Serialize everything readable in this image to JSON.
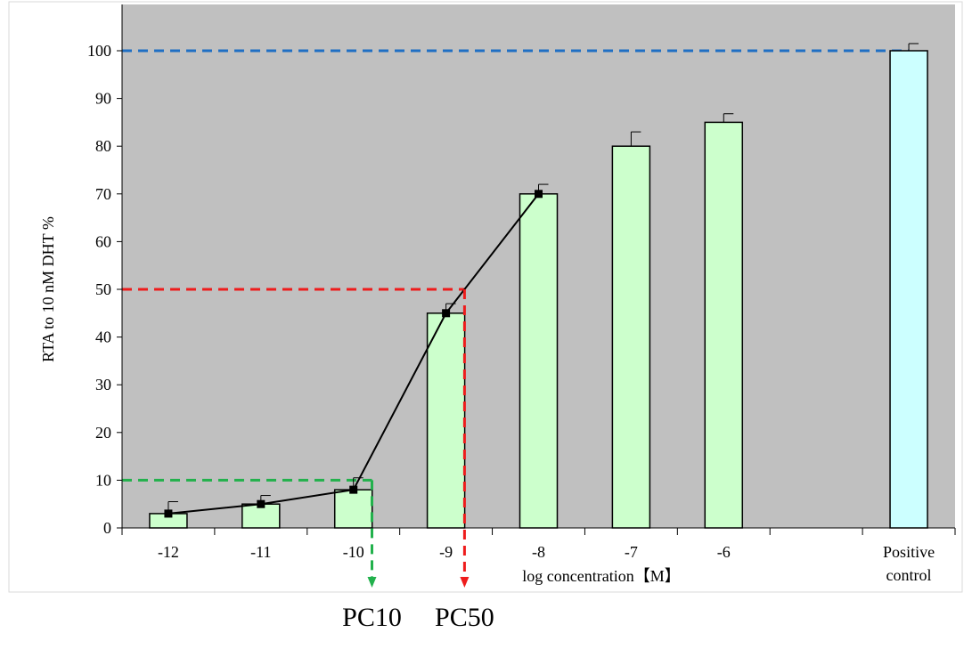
{
  "chart_data": {
    "type": "bar",
    "categories": [
      "-12",
      "-11",
      "-10",
      "-9",
      "-8",
      "-7",
      "-6",
      "",
      "Positive control"
    ],
    "category_labels": [
      [
        "-12"
      ],
      [
        "-11"
      ],
      [
        "-10"
      ],
      [
        "-9"
      ],
      [
        "-8"
      ],
      [
        "-7"
      ],
      [
        "-6"
      ],
      [
        ""
      ],
      [
        "Positive",
        "control"
      ]
    ],
    "bars": [
      {
        "category": "-12",
        "value": 3,
        "error": 2.5
      },
      {
        "category": "-11",
        "value": 5,
        "error": 1.8
      },
      {
        "category": "-10",
        "value": 8,
        "error": 2.5
      },
      {
        "category": "-9",
        "value": 45,
        "error": 2
      },
      {
        "category": "-8",
        "value": 70,
        "error": 2
      },
      {
        "category": "-7",
        "value": 80,
        "error": 3
      },
      {
        "category": "-6",
        "value": 85,
        "error": 1.8
      },
      {
        "category": "Positive control",
        "value": 100,
        "error": 1.5
      }
    ],
    "line": {
      "categories": [
        "-12",
        "-11",
        "-10",
        "-9",
        "-8"
      ],
      "values": [
        3,
        5,
        8,
        45,
        70
      ]
    },
    "reference_lines": [
      {
        "label": "",
        "y": 100,
        "color": "#1f6fc4"
      },
      {
        "label": "PC50",
        "y": 50,
        "x": -8.8,
        "color": "#ee1c1c"
      },
      {
        "label": "PC10",
        "y": 10,
        "x": -9.8,
        "color": "#22b14c"
      }
    ],
    "xlabel": "log concentration【M】",
    "ylabel": "RTA to 10 nM DHT %",
    "yticks": [
      0,
      10,
      20,
      30,
      40,
      50,
      60,
      70,
      80,
      90,
      100
    ],
    "ylim": [
      0,
      100
    ],
    "grid": false,
    "colors": {
      "plot_background": "#c0c0c0",
      "bar_fill": "#ccffcc",
      "control_fill": "#ccffff",
      "bar_stroke": "#000000",
      "line": "#000000"
    }
  }
}
